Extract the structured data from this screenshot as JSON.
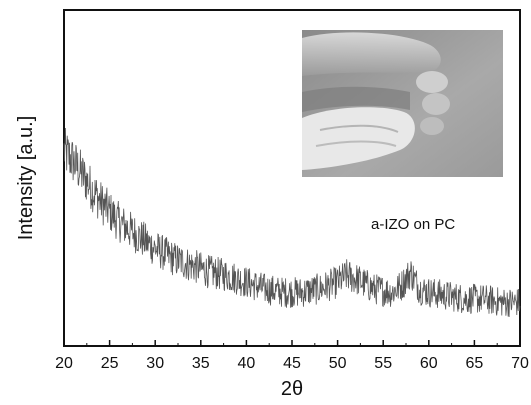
{
  "chart_data": {
    "type": "line",
    "title": "",
    "xlabel": "2θ",
    "ylabel": "Intensity [a.u.]",
    "xlim": [
      20,
      70
    ],
    "ylim": [
      0,
      1
    ],
    "x_ticks": [
      20,
      25,
      30,
      35,
      40,
      45,
      50,
      55,
      60,
      65,
      70
    ],
    "y_ticks_labeled": false,
    "grid": false,
    "legend": "none",
    "annotation": "a-IZO on PC",
    "inset": "photograph of flexible a-IZO film on polycarbonate held between fingers",
    "series": [
      {
        "color": "#555555",
        "noise": 0.06,
        "x": [
          20,
          21,
          22,
          23,
          24,
          25,
          26,
          27,
          28,
          30,
          32,
          34,
          35,
          36,
          38,
          40,
          42,
          44,
          46,
          48,
          50,
          51,
          52,
          54,
          56,
          57,
          58,
          59,
          60,
          62,
          64,
          66,
          68,
          70
        ],
        "y": [
          0.58,
          0.55,
          0.51,
          0.47,
          0.43,
          0.4,
          0.37,
          0.35,
          0.33,
          0.29,
          0.26,
          0.24,
          0.23,
          0.22,
          0.21,
          0.19,
          0.17,
          0.16,
          0.16,
          0.17,
          0.19,
          0.21,
          0.2,
          0.17,
          0.16,
          0.18,
          0.22,
          0.17,
          0.16,
          0.15,
          0.14,
          0.14,
          0.13,
          0.13
        ]
      }
    ]
  }
}
